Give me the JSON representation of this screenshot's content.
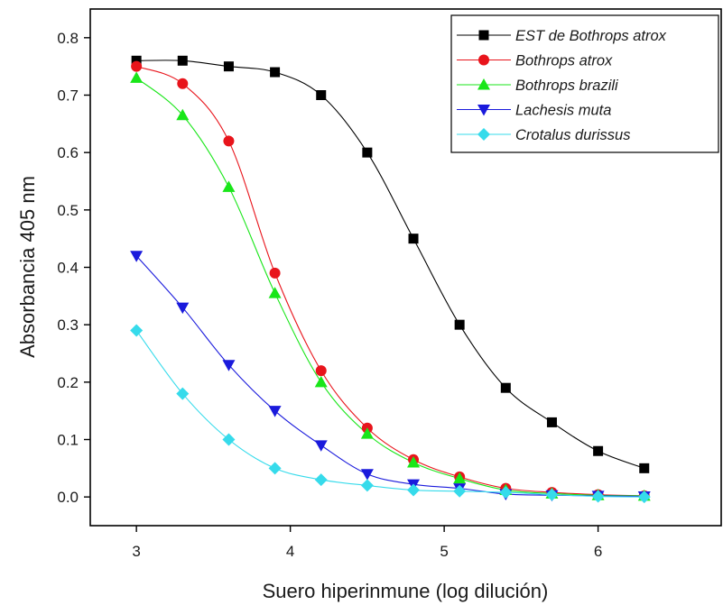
{
  "chart_data": {
    "type": "line",
    "xlabel": "Suero hiperinmune (log dilución)",
    "ylabel": "Absorbancia 405 nm",
    "xlim": [
      2.7,
      6.8
    ],
    "ylim": [
      -0.05,
      0.85
    ],
    "xticks": [
      3,
      4,
      5,
      6
    ],
    "yticks": [
      0.0,
      0.1,
      0.2,
      0.3,
      0.4,
      0.5,
      0.6,
      0.7,
      0.8
    ],
    "x": [
      3.0,
      3.3,
      3.6,
      3.9,
      4.2,
      4.5,
      4.8,
      5.1,
      5.4,
      5.7,
      6.0,
      6.3
    ],
    "grid": false,
    "legend_position": "top-right",
    "series": [
      {
        "name": "EST de Bothrops atrox",
        "color": "#000000",
        "marker": "square",
        "values": [
          0.76,
          0.76,
          0.75,
          0.74,
          0.7,
          0.6,
          0.45,
          0.3,
          0.19,
          0.13,
          0.08,
          0.05
        ]
      },
      {
        "name": "Bothrops atrox",
        "color": "#e8141b",
        "marker": "circle",
        "values": [
          0.75,
          0.72,
          0.62,
          0.39,
          0.22,
          0.12,
          0.065,
          0.035,
          0.015,
          0.008,
          0.004,
          0.002
        ]
      },
      {
        "name": "Bothrops brazili",
        "color": "#19e619",
        "marker": "triangle-up",
        "values": [
          0.73,
          0.665,
          0.54,
          0.355,
          0.2,
          0.11,
          0.06,
          0.032,
          0.012,
          0.006,
          0.003,
          0.002
        ]
      },
      {
        "name": "Lachesis muta",
        "color": "#1a1adc",
        "marker": "triangle-down",
        "values": [
          0.42,
          0.33,
          0.23,
          0.15,
          0.09,
          0.04,
          0.022,
          0.015,
          0.005,
          0.003,
          0.002,
          0.001
        ]
      },
      {
        "name": "Crotalus durissus",
        "color": "#36dbeb",
        "marker": "diamond",
        "values": [
          0.29,
          0.18,
          0.1,
          0.05,
          0.03,
          0.02,
          0.012,
          0.01,
          0.008,
          0.004,
          0.001,
          0.0
        ]
      }
    ]
  }
}
